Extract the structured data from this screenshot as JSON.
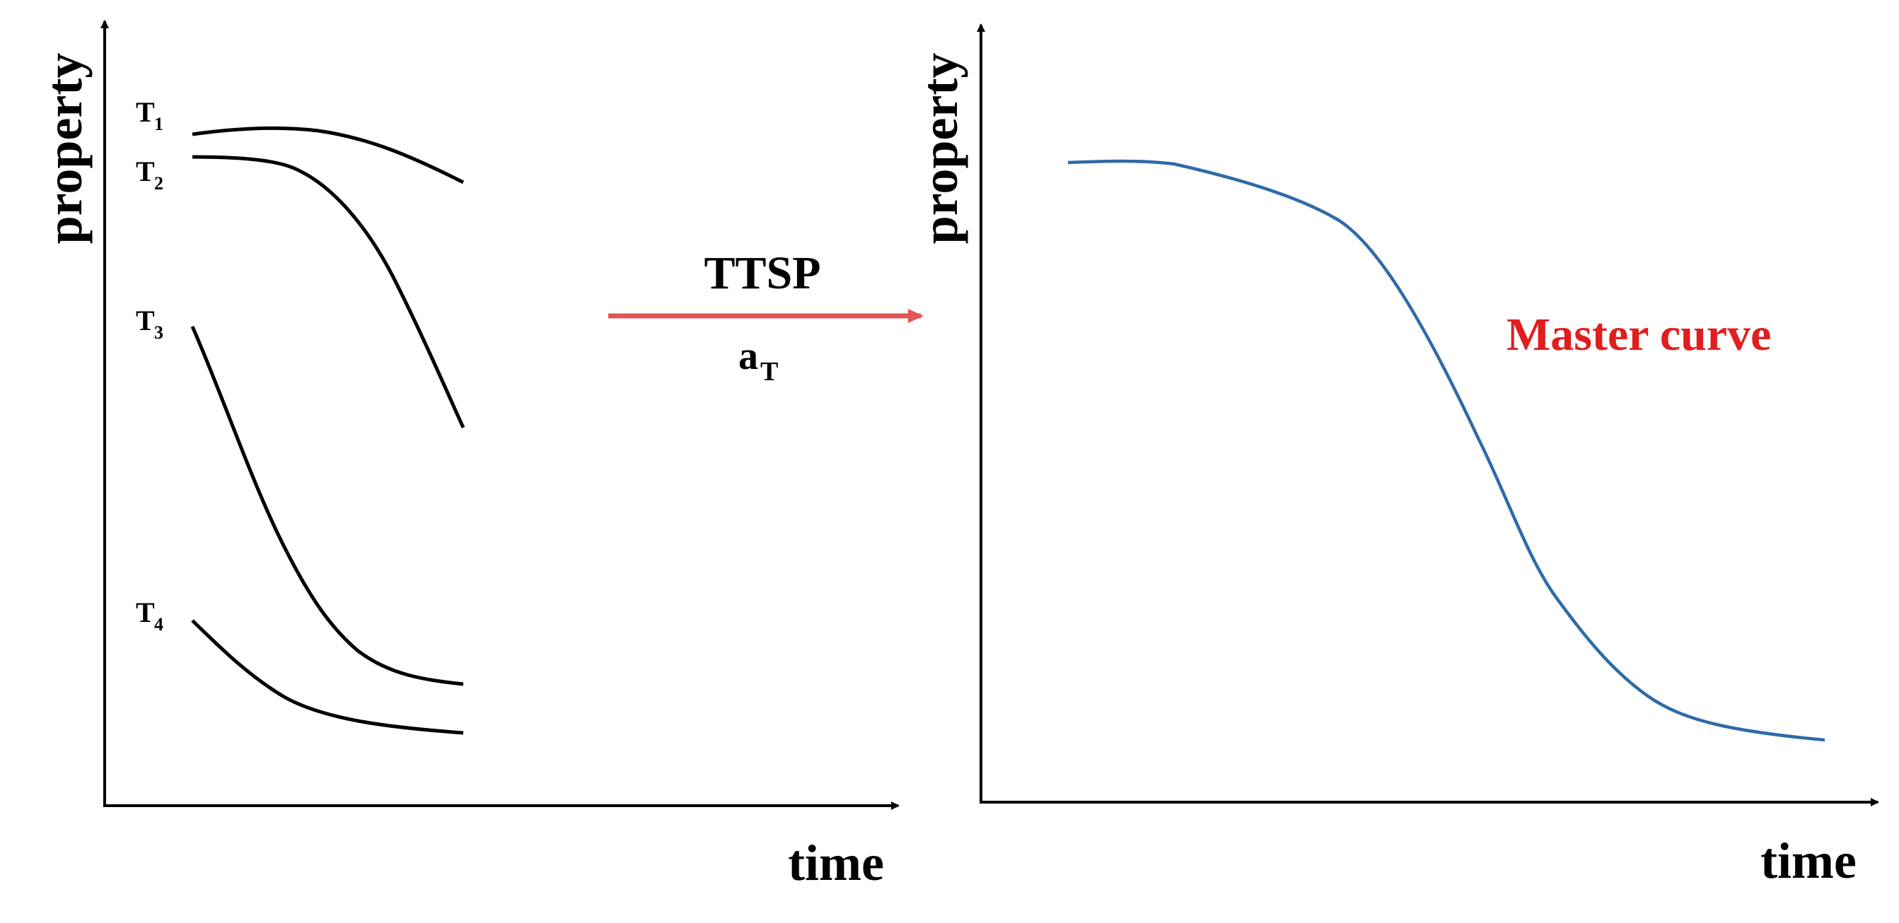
{
  "left_panel": {
    "y_label": "property",
    "x_label": "time",
    "curves": [
      {
        "label_base": "T",
        "label_sub": "1"
      },
      {
        "label_base": "T",
        "label_sub": "2"
      },
      {
        "label_base": "T",
        "label_sub": "3"
      },
      {
        "label_base": "T",
        "label_sub": "4"
      }
    ],
    "curve_color": "#000000"
  },
  "transform": {
    "title": "TTSP",
    "factor_base": "a",
    "factor_sub": "T",
    "arrow_color": "#e05555"
  },
  "right_panel": {
    "y_label": "property",
    "x_label": "time",
    "curve_label": "Master curve",
    "curve_label_color": "#e01e1e",
    "curve_color": "#2e6aa8"
  }
}
